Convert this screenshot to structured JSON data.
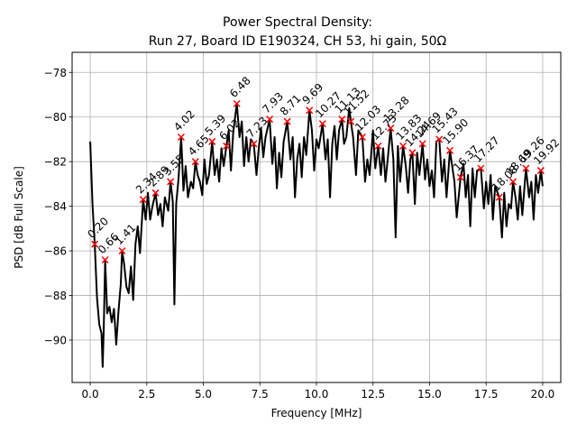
{
  "chart_data": {
    "type": "line",
    "title": "Power Spectral Density:",
    "subtitle": "Run 27, Board ID E190324, CH 53, hi gain, 50Ω",
    "xlabel": "Frequency [MHz]",
    "ylabel": "PSD [dB Full Scale]",
    "xlim": [
      -0.8,
      20.8
    ],
    "ylim": [
      -91.9,
      -77.1
    ],
    "xticks": [
      0.0,
      2.5,
      5.0,
      7.5,
      10.0,
      12.5,
      15.0,
      17.5,
      20.0
    ],
    "xtick_labels": [
      "0.0",
      "2.5",
      "5.0",
      "7.5",
      "10.0",
      "12.5",
      "15.0",
      "17.5",
      "20.0"
    ],
    "yticks": [
      -78,
      -80,
      -82,
      -84,
      -86,
      -88,
      -90
    ],
    "ytick_labels": [
      "−78",
      "−80",
      "−82",
      "−84",
      "−86",
      "−88",
      "−90"
    ],
    "grid": true,
    "line_color": "#000000",
    "marker_color": "#ff0000",
    "series": [
      {
        "values": [
          [
            0.0,
            -81.1
          ],
          [
            0.1,
            -83.9
          ],
          [
            0.2,
            -85.7
          ],
          [
            0.3,
            -88.1
          ],
          [
            0.4,
            -89.3
          ],
          [
            0.5,
            -89.7
          ],
          [
            0.55,
            -91.2
          ],
          [
            0.6,
            -89.4
          ],
          [
            0.66,
            -86.4
          ],
          [
            0.75,
            -88.8
          ],
          [
            0.85,
            -88.5
          ],
          [
            0.95,
            -89.2
          ],
          [
            1.05,
            -88.6
          ],
          [
            1.15,
            -90.2
          ],
          [
            1.25,
            -88.7
          ],
          [
            1.35,
            -87.5
          ],
          [
            1.41,
            -86.0
          ],
          [
            1.5,
            -86.6
          ],
          [
            1.6,
            -87.6
          ],
          [
            1.7,
            -87.9
          ],
          [
            1.8,
            -86.7
          ],
          [
            1.9,
            -88.2
          ],
          [
            2.0,
            -85.7
          ],
          [
            2.1,
            -84.9
          ],
          [
            2.2,
            -86.1
          ],
          [
            2.34,
            -83.7
          ],
          [
            2.45,
            -84.6
          ],
          [
            2.55,
            -83.4
          ],
          [
            2.65,
            -84.6
          ],
          [
            2.75,
            -84.0
          ],
          [
            2.89,
            -83.4
          ],
          [
            3.0,
            -84.4
          ],
          [
            3.1,
            -83.9
          ],
          [
            3.2,
            -84.9
          ],
          [
            3.3,
            -83.6
          ],
          [
            3.45,
            -84.2
          ],
          [
            3.55,
            -82.9
          ],
          [
            3.65,
            -83.8
          ],
          [
            3.72,
            -88.4
          ],
          [
            3.8,
            -83.9
          ],
          [
            3.9,
            -82.8
          ],
          [
            4.02,
            -80.9
          ],
          [
            4.12,
            -83.3
          ],
          [
            4.22,
            -82.2
          ],
          [
            4.32,
            -83.6
          ],
          [
            4.45,
            -82.9
          ],
          [
            4.55,
            -83.2
          ],
          [
            4.65,
            -82.0
          ],
          [
            4.75,
            -82.6
          ],
          [
            4.85,
            -82.9
          ],
          [
            4.95,
            -83.5
          ],
          [
            5.05,
            -81.9
          ],
          [
            5.15,
            -83.0
          ],
          [
            5.25,
            -82.6
          ],
          [
            5.39,
            -81.1
          ],
          [
            5.5,
            -82.6
          ],
          [
            5.6,
            -81.9
          ],
          [
            5.7,
            -82.9
          ],
          [
            5.8,
            -81.4
          ],
          [
            5.9,
            -82.2
          ],
          [
            6.02,
            -81.3
          ],
          [
            6.12,
            -80.6
          ],
          [
            6.22,
            -82.4
          ],
          [
            6.32,
            -80.7
          ],
          [
            6.48,
            -79.4
          ],
          [
            6.6,
            -80.9
          ],
          [
            6.7,
            -80.2
          ],
          [
            6.8,
            -82.2
          ],
          [
            6.9,
            -80.9
          ],
          [
            7.0,
            -82.0
          ],
          [
            7.1,
            -81.0
          ],
          [
            7.23,
            -81.2
          ],
          [
            7.35,
            -82.6
          ],
          [
            7.45,
            -81.4
          ],
          [
            7.55,
            -80.5
          ],
          [
            7.65,
            -81.8
          ],
          [
            7.75,
            -80.9
          ],
          [
            7.93,
            -80.1
          ],
          [
            8.05,
            -82.1
          ],
          [
            8.15,
            -80.9
          ],
          [
            8.25,
            -83.2
          ],
          [
            8.35,
            -81.6
          ],
          [
            8.45,
            -82.7
          ],
          [
            8.55,
            -81.1
          ],
          [
            8.71,
            -80.2
          ],
          [
            8.85,
            -81.9
          ],
          [
            8.95,
            -80.9
          ],
          [
            9.05,
            -83.6
          ],
          [
            9.15,
            -81.9
          ],
          [
            9.25,
            -81.2
          ],
          [
            9.35,
            -82.7
          ],
          [
            9.45,
            -80.9
          ],
          [
            9.55,
            -81.7
          ],
          [
            9.69,
            -79.7
          ],
          [
            9.8,
            -80.6
          ],
          [
            9.9,
            -82.4
          ],
          [
            10.0,
            -81.0
          ],
          [
            10.1,
            -81.4
          ],
          [
            10.27,
            -80.3
          ],
          [
            10.4,
            -81.9
          ],
          [
            10.5,
            -81.0
          ],
          [
            10.6,
            -83.6
          ],
          [
            10.7,
            -81.2
          ],
          [
            10.8,
            -80.4
          ],
          [
            10.9,
            -81.9
          ],
          [
            11.0,
            -80.6
          ],
          [
            11.13,
            -80.1
          ],
          [
            11.22,
            -81.2
          ],
          [
            11.32,
            -80.9
          ],
          [
            11.45,
            -79.6
          ],
          [
            11.52,
            -80.2
          ],
          [
            11.62,
            -80.9
          ],
          [
            11.75,
            -82.6
          ],
          [
            11.85,
            -80.6
          ],
          [
            12.03,
            -80.9
          ],
          [
            12.15,
            -82.9
          ],
          [
            12.25,
            -81.9
          ],
          [
            12.35,
            -82.6
          ],
          [
            12.5,
            -80.6
          ],
          [
            12.6,
            -82.3
          ],
          [
            12.73,
            -81.3
          ],
          [
            12.85,
            -82.6
          ],
          [
            12.95,
            -81.4
          ],
          [
            13.05,
            -82.9
          ],
          [
            13.15,
            -81.9
          ],
          [
            13.28,
            -80.5
          ],
          [
            13.4,
            -81.9
          ],
          [
            13.5,
            -85.4
          ],
          [
            13.6,
            -81.3
          ],
          [
            13.7,
            -82.9
          ],
          [
            13.83,
            -81.3
          ],
          [
            13.95,
            -82.2
          ],
          [
            14.05,
            -83.4
          ],
          [
            14.15,
            -81.9
          ],
          [
            14.24,
            -81.6
          ],
          [
            14.35,
            -83.9
          ],
          [
            14.45,
            -81.6
          ],
          [
            14.55,
            -82.6
          ],
          [
            14.69,
            -81.2
          ],
          [
            14.8,
            -82.8
          ],
          [
            14.9,
            -81.9
          ],
          [
            15.0,
            -83.1
          ],
          [
            15.1,
            -82.4
          ],
          [
            15.2,
            -83.6
          ],
          [
            15.3,
            -81.1
          ],
          [
            15.43,
            -81.0
          ],
          [
            15.55,
            -82.9
          ],
          [
            15.65,
            -81.9
          ],
          [
            15.75,
            -83.6
          ],
          [
            15.9,
            -81.5
          ],
          [
            16.0,
            -82.2
          ],
          [
            16.1,
            -82.9
          ],
          [
            16.2,
            -84.5
          ],
          [
            16.37,
            -82.7
          ],
          [
            16.5,
            -82.1
          ],
          [
            16.6,
            -83.6
          ],
          [
            16.7,
            -82.6
          ],
          [
            16.8,
            -84.9
          ],
          [
            16.9,
            -82.3
          ],
          [
            17.0,
            -83.6
          ],
          [
            17.1,
            -82.4
          ],
          [
            17.27,
            -82.3
          ],
          [
            17.4,
            -84.1
          ],
          [
            17.5,
            -82.9
          ],
          [
            17.6,
            -83.9
          ],
          [
            17.7,
            -82.6
          ],
          [
            17.8,
            -84.6
          ],
          [
            17.9,
            -83.1
          ],
          [
            18.08,
            -83.6
          ],
          [
            18.2,
            -85.4
          ],
          [
            18.3,
            -83.4
          ],
          [
            18.4,
            -84.9
          ],
          [
            18.5,
            -83.9
          ],
          [
            18.6,
            -84.1
          ],
          [
            18.69,
            -82.9
          ],
          [
            18.8,
            -83.6
          ],
          [
            18.9,
            -84.6
          ],
          [
            19.0,
            -83.1
          ],
          [
            19.1,
            -84.4
          ],
          [
            19.26,
            -82.3
          ],
          [
            19.4,
            -83.6
          ],
          [
            19.5,
            -82.9
          ],
          [
            19.6,
            -84.6
          ],
          [
            19.7,
            -82.6
          ],
          [
            19.8,
            -83.4
          ],
          [
            19.92,
            -82.4
          ],
          [
            20.0,
            -83.1
          ]
        ]
      }
    ],
    "peaks": [
      {
        "label": "0.20",
        "x": 0.2,
        "y": -85.7
      },
      {
        "label": "0.66",
        "x": 0.66,
        "y": -86.4
      },
      {
        "label": "1.41",
        "x": 1.41,
        "y": -86.0
      },
      {
        "label": "2.34",
        "x": 2.34,
        "y": -83.7
      },
      {
        "label": "2.89",
        "x": 2.89,
        "y": -83.4
      },
      {
        "label": "3.55",
        "x": 3.55,
        "y": -82.9
      },
      {
        "label": "4.02",
        "x": 4.02,
        "y": -80.9
      },
      {
        "label": "4.65",
        "x": 4.65,
        "y": -82.0
      },
      {
        "label": "5.39",
        "x": 5.39,
        "y": -81.1
      },
      {
        "label": "6.02",
        "x": 6.02,
        "y": -81.3
      },
      {
        "label": "6.48",
        "x": 6.48,
        "y": -79.4
      },
      {
        "label": "7.23",
        "x": 7.23,
        "y": -81.2
      },
      {
        "label": "7.93",
        "x": 7.93,
        "y": -80.1
      },
      {
        "label": "8.71",
        "x": 8.71,
        "y": -80.2
      },
      {
        "label": "9.69",
        "x": 9.69,
        "y": -79.7
      },
      {
        "label": "10.27",
        "x": 10.27,
        "y": -80.3
      },
      {
        "label": "11.13",
        "x": 11.13,
        "y": -80.1
      },
      {
        "label": "11.52",
        "x": 11.52,
        "y": -80.2
      },
      {
        "label": "12.03",
        "x": 12.03,
        "y": -80.9
      },
      {
        "label": "12.73",
        "x": 12.73,
        "y": -81.3
      },
      {
        "label": "13.28",
        "x": 13.28,
        "y": -80.5
      },
      {
        "label": "13.83",
        "x": 13.83,
        "y": -81.3
      },
      {
        "label": "14.24",
        "x": 14.24,
        "y": -81.6
      },
      {
        "label": "14.69",
        "x": 14.69,
        "y": -81.2
      },
      {
        "label": "15.43",
        "x": 15.43,
        "y": -81.0
      },
      {
        "label": "15.90",
        "x": 15.9,
        "y": -81.5
      },
      {
        "label": "16.37",
        "x": 16.37,
        "y": -82.7
      },
      {
        "label": "17.27",
        "x": 17.27,
        "y": -82.3
      },
      {
        "label": "18.08",
        "x": 18.08,
        "y": -83.6
      },
      {
        "label": "18.69",
        "x": 18.69,
        "y": -82.9
      },
      {
        "label": "19.26",
        "x": 19.26,
        "y": -82.3
      },
      {
        "label": "19.92",
        "x": 19.92,
        "y": -82.4
      }
    ]
  }
}
